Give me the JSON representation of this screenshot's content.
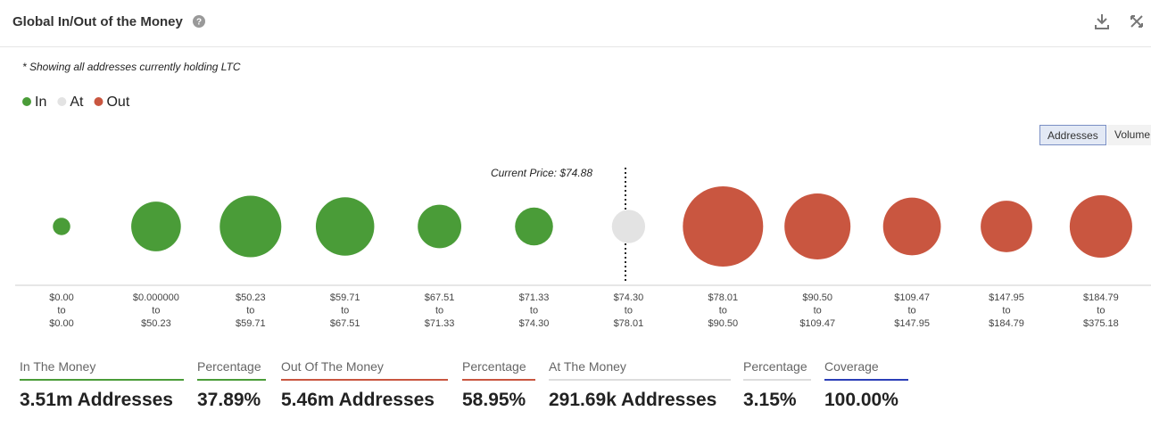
{
  "header": {
    "title": "Global In/Out of the Money"
  },
  "note": "* Showing all addresses currently holding LTC",
  "buttons": [
    "Addresses",
    "Volume"
  ],
  "chart_data": {
    "type": "bubble",
    "annotation": "Current Price: $74.88",
    "categories": [
      [
        "$0.00",
        "to",
        "$0.00"
      ],
      [
        "$0.000000",
        "to",
        "$50.23"
      ],
      [
        "$50.23",
        "to",
        "$59.71"
      ],
      [
        "$59.71",
        "to",
        "$67.51"
      ],
      [
        "$67.51",
        "to",
        "$71.33"
      ],
      [
        "$71.33",
        "to",
        "$74.30"
      ],
      [
        "$74.30",
        "to",
        "$78.01"
      ],
      [
        "$78.01",
        "to",
        "$90.50"
      ],
      [
        "$90.50",
        "to",
        "$109.47"
      ],
      [
        "$109.47",
        "to",
        "$147.95"
      ],
      [
        "$147.95",
        "to",
        "$184.79"
      ],
      [
        "$184.79",
        "to",
        "$375.18"
      ]
    ],
    "series": [
      {
        "name": "In",
        "color": "#4a9c38",
        "values": [
          80000,
          650000,
          1000000,
          900000,
          500000,
          380000,
          null,
          null,
          null,
          null,
          null,
          null
        ]
      },
      {
        "name": "At",
        "color": "#e3e3e3",
        "values": [
          null,
          null,
          null,
          null,
          null,
          null,
          291690,
          null,
          null,
          null,
          null,
          null
        ]
      },
      {
        "name": "Out",
        "color": "#c95640",
        "values": [
          null,
          null,
          null,
          null,
          null,
          null,
          null,
          1700000,
          1150000,
          880000,
          700000,
          1030000
        ]
      }
    ]
  },
  "stats": [
    {
      "label": "In The Money",
      "value": "3.51m Addresses",
      "color": "#4a9c38"
    },
    {
      "label": "Percentage",
      "value": "37.89%",
      "color": "#4a9c38"
    },
    {
      "label": "Out Of The Money",
      "value": "5.46m Addresses",
      "color": "#c95640"
    },
    {
      "label": "Percentage",
      "value": "58.95%",
      "color": "#c95640"
    },
    {
      "label": "At The Money",
      "value": "291.69k Addresses",
      "color": "#dddddd"
    },
    {
      "label": "Percentage",
      "value": "3.15%",
      "color": "#dddddd"
    },
    {
      "label": "Coverage",
      "value": "100.00%",
      "color": "#2b3fb8"
    }
  ]
}
